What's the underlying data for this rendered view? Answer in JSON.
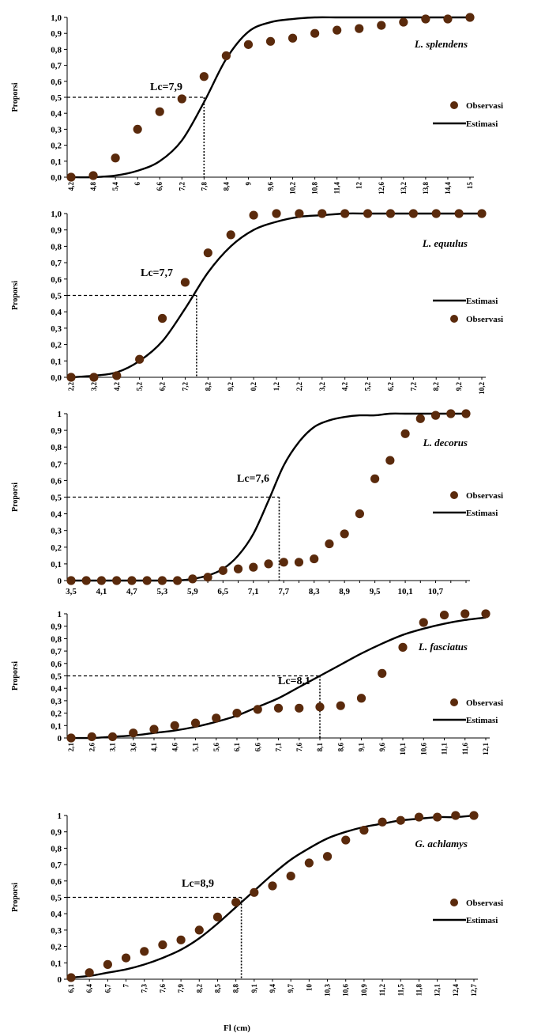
{
  "figure": {
    "xlabel": "Fl (cm)",
    "ylabel": "Proporsi"
  },
  "chart_data": [
    {
      "type": "line",
      "title": "L. splendens",
      "ylabel": "Proporsi",
      "x": [
        "4,2",
        "4,8",
        "5,4",
        "6",
        "6,6",
        "7,2",
        "7,8",
        "8,4",
        "9",
        "9,6",
        "10,2",
        "10,8",
        "11,4",
        "12",
        "12,6",
        "13,2",
        "13,8",
        "14,4",
        "15"
      ],
      "y_ticks": [
        "0,0",
        "0,1",
        "0,2",
        "0,3",
        "0,4",
        "0,5",
        "0,6",
        "0,7",
        "0,8",
        "0,9",
        "1,0"
      ],
      "ylim": [
        0,
        1
      ],
      "legend_order": [
        "Observasi",
        "Estimasi"
      ],
      "lc_label": "Lc=7,9",
      "lc_index": 6,
      "series": [
        {
          "name": "Observasi",
          "values": [
            0.0,
            0.01,
            0.12,
            0.3,
            0.41,
            0.49,
            0.63,
            0.76,
            0.83,
            0.85,
            0.87,
            0.9,
            0.92,
            0.93,
            0.95,
            0.97,
            0.99,
            0.99,
            1.0
          ]
        },
        {
          "name": "Estimasi",
          "values": [
            0.0,
            0.0,
            0.01,
            0.04,
            0.1,
            0.23,
            0.47,
            0.74,
            0.91,
            0.97,
            0.99,
            1.0,
            1.0,
            1.0,
            1.0,
            1.0,
            1.0,
            1.0,
            1.0
          ]
        }
      ]
    },
    {
      "type": "line",
      "title": "L. equulus",
      "ylabel": "Proporsi",
      "x": [
        "2,2",
        "3,2",
        "4,2",
        "5,2",
        "6,2",
        "7,2",
        "8,2",
        "9,2",
        "0,2",
        "1,2",
        "2,2",
        "3,2",
        "4,2",
        "5,2",
        "6,2",
        "7,2",
        "8,2",
        "9,2",
        "10,2"
      ],
      "y_ticks": [
        "0,0",
        "0,1",
        "0,2",
        "0,3",
        "0,4",
        "0,5",
        "0,6",
        "0,7",
        "0,8",
        "0,9",
        "1,0"
      ],
      "ylim": [
        0,
        1
      ],
      "legend_order": [
        "Estimasi",
        "Observasi"
      ],
      "lc_label": "Lc=7,7",
      "lc_index": 5.5,
      "series": [
        {
          "name": "Observasi",
          "values": [
            0.0,
            0.0,
            0.01,
            0.11,
            0.36,
            0.58,
            0.76,
            0.87,
            0.99,
            1.0,
            1.0,
            1.0,
            1.0,
            1.0,
            1.0,
            1.0,
            1.0,
            1.0,
            1.0
          ]
        },
        {
          "name": "Estimasi",
          "values": [
            0.0,
            0.01,
            0.03,
            0.1,
            0.22,
            0.42,
            0.64,
            0.8,
            0.9,
            0.95,
            0.98,
            0.99,
            1.0,
            1.0,
            1.0,
            1.0,
            1.0,
            1.0,
            1.0
          ]
        }
      ]
    },
    {
      "type": "line",
      "title": "L. decorus",
      "ylabel": "Proporsi",
      "x": [
        "3,5",
        "3,8",
        "4,1",
        "4,4",
        "4,7",
        "5",
        "5,3",
        "5,6",
        "5,9",
        "6,2",
        "6,5",
        "6,8",
        "7,1",
        "7,4",
        "7,7",
        "8",
        "8,3",
        "8,6",
        "8,9",
        "9,2",
        "9,5",
        "9,8",
        "10,1",
        "10,4",
        "10,7",
        "11",
        "11,3"
      ],
      "x_tick_labels": [
        "3,5",
        "4,1",
        "4,7",
        "5,3",
        "5,9",
        "6,5",
        "7,1",
        "7,7",
        "8,3",
        "8,9",
        "9,5",
        "10,1",
        "10,7"
      ],
      "y_ticks": [
        "0",
        "0,1",
        "0,2",
        "0,3",
        "0,4",
        "0,5",
        "0,6",
        "0,7",
        "0,8",
        "0,9",
        "1"
      ],
      "ylim": [
        0,
        1
      ],
      "legend_order": [
        "Observasi",
        "Estimasi"
      ],
      "lc_label": "Lc=7,6",
      "lc_index": 13.7,
      "series": [
        {
          "name": "Observasi",
          "values": [
            0.0,
            0.0,
            0.0,
            0.0,
            0.0,
            0.0,
            0.0,
            0.0,
            0.01,
            0.02,
            0.06,
            0.07,
            0.08,
            0.1,
            0.11,
            0.11,
            0.13,
            0.22,
            0.28,
            0.4,
            0.61,
            0.72,
            0.88,
            0.97,
            0.99,
            1.0,
            1.0
          ]
        },
        {
          "name": "Estimasi",
          "values": [
            0.0,
            0.0,
            0.0,
            0.0,
            0.0,
            0.0,
            0.0,
            0.0,
            0.01,
            0.03,
            0.07,
            0.15,
            0.28,
            0.48,
            0.69,
            0.83,
            0.92,
            0.96,
            0.98,
            0.99,
            0.99,
            1.0,
            1.0,
            1.0,
            1.0,
            1.0,
            1.0
          ]
        }
      ]
    },
    {
      "type": "line",
      "title": "L. fasciatus",
      "ylabel": "Proporsi",
      "x": [
        "2,1",
        "2,6",
        "3,1",
        "3,6",
        "4,1",
        "4,6",
        "5,1",
        "5,6",
        "6,1",
        "6,6",
        "7,1",
        "7,6",
        "8,1",
        "8,6",
        "9,1",
        "9,6",
        "10,1",
        "10,6",
        "11,1",
        "11,6",
        "12,1"
      ],
      "y_ticks": [
        "0",
        "0,1",
        "0,2",
        "0,3",
        "0,4",
        "0,5",
        "0,6",
        "0,7",
        "0,8",
        "0,9",
        "1"
      ],
      "ylim": [
        0,
        1
      ],
      "legend_order": [
        "Observasi",
        "Estimasi"
      ],
      "lc_label": "Lc=8,1",
      "lc_index": 12,
      "series": [
        {
          "name": "Observasi",
          "values": [
            0.0,
            0.01,
            0.01,
            0.04,
            0.07,
            0.1,
            0.12,
            0.16,
            0.2,
            0.23,
            0.24,
            0.24,
            0.25,
            0.26,
            0.32,
            0.52,
            0.73,
            0.93,
            0.99,
            1.0,
            1.0
          ]
        },
        {
          "name": "Estimasi",
          "values": [
            0.0,
            0.0,
            0.01,
            0.02,
            0.04,
            0.06,
            0.09,
            0.13,
            0.18,
            0.25,
            0.32,
            0.41,
            0.5,
            0.59,
            0.68,
            0.76,
            0.83,
            0.88,
            0.92,
            0.95,
            0.97
          ]
        }
      ]
    },
    {
      "type": "line",
      "title": "G. achlamys",
      "ylabel": "Proporsi",
      "xlabel": "Fl (cm)",
      "x": [
        "6,1",
        "6,4",
        "6,7",
        "7",
        "7,3",
        "7,6",
        "7,9",
        "8,2",
        "8,5",
        "8,8",
        "9,1",
        "9,4",
        "9,7",
        "10",
        "10,3",
        "10,6",
        "10,9",
        "11,2",
        "11,5",
        "11,8",
        "12,1",
        "12,4",
        "12,7"
      ],
      "y_ticks": [
        "0",
        "0,1",
        "0,2",
        "0,3",
        "0,4",
        "0,5",
        "0,6",
        "0,7",
        "0,8",
        "0,9",
        "1"
      ],
      "ylim": [
        0,
        1
      ],
      "legend_order": [
        "Observasi",
        "Estimasi"
      ],
      "lc_label": "Lc=8,9",
      "lc_index": 9.3,
      "series": [
        {
          "name": "Observasi",
          "values": [
            0.01,
            0.04,
            0.09,
            0.13,
            0.17,
            0.21,
            0.24,
            0.3,
            0.38,
            0.47,
            0.53,
            0.57,
            0.63,
            0.71,
            0.75,
            0.85,
            0.91,
            0.96,
            0.97,
            0.99,
            0.99,
            1.0,
            1.0
          ]
        },
        {
          "name": "Estimasi",
          "values": [
            0.01,
            0.02,
            0.04,
            0.06,
            0.09,
            0.13,
            0.18,
            0.25,
            0.34,
            0.44,
            0.54,
            0.64,
            0.73,
            0.8,
            0.86,
            0.9,
            0.93,
            0.95,
            0.97,
            0.98,
            0.99,
            0.99,
            1.0
          ]
        }
      ]
    }
  ],
  "colors": {
    "observed_marker": "#5a2a0c",
    "line": "#000000",
    "axis": "#000000"
  }
}
